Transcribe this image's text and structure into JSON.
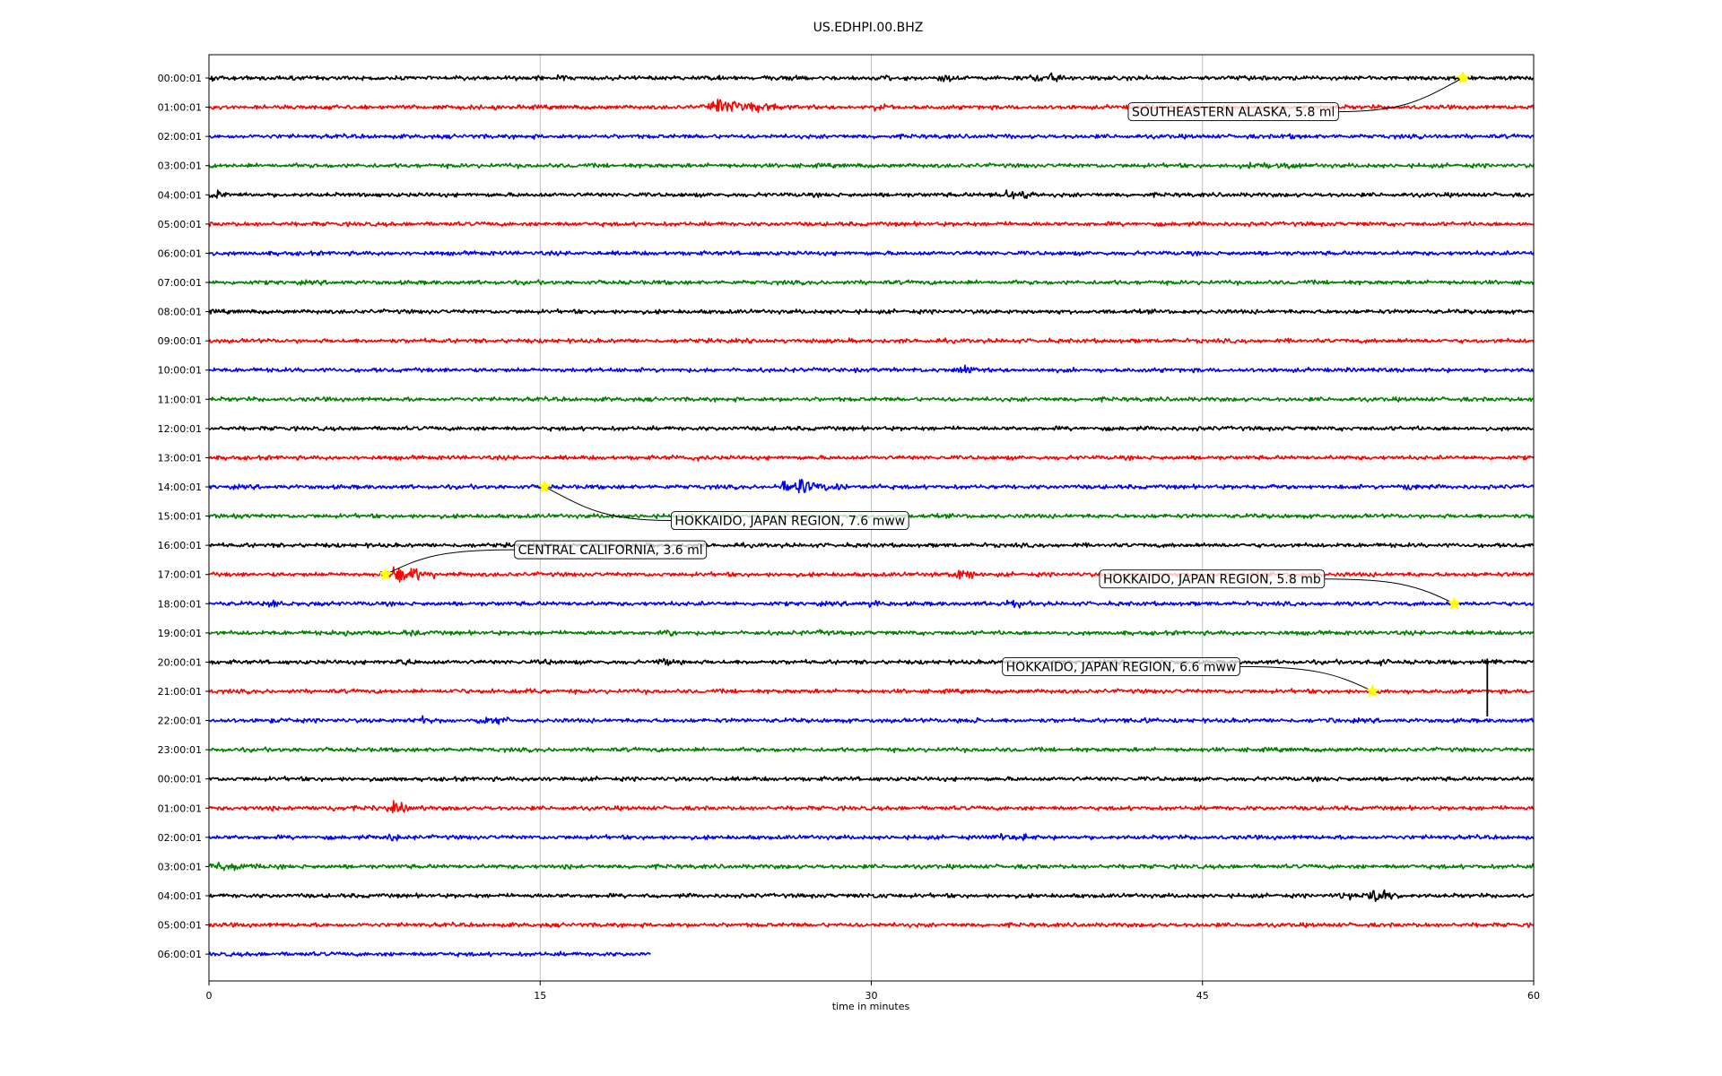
{
  "chart_data": {
    "type": "line",
    "title": "US.EDHPI.00.BHZ",
    "xlabel": "time in minutes",
    "xlim": [
      0,
      60
    ],
    "x_ticks": [
      0,
      15,
      30,
      45,
      60
    ],
    "grid": "vertical",
    "trace_colors": [
      "#000000",
      "#ff0000",
      "#0000ff",
      "#008000"
    ],
    "marker_color": "#ffff00",
    "rows": [
      {
        "label": "00:00:01",
        "color": "#000000",
        "activity": [
          [
            0.3,
            2.0
          ],
          [
            16.0,
            1.5
          ],
          [
            23.0,
            1.6
          ],
          [
            26.5,
            1.7
          ],
          [
            30.5,
            1.8
          ],
          [
            33.5,
            2.0
          ],
          [
            37.5,
            2.2
          ],
          [
            38.2,
            2.6
          ]
        ]
      },
      {
        "label": "01:00:01",
        "color": "#ff0000",
        "activity": [
          [
            23.2,
            5.0
          ],
          [
            23.8,
            4.0
          ],
          [
            24.5,
            3.5
          ],
          [
            25.2,
            2.8
          ],
          [
            30.3,
            2.2
          ],
          [
            30.8,
            1.6
          ]
        ]
      },
      {
        "label": "02:00:01",
        "color": "#0000ff",
        "activity": [
          [
            36.2,
            1.5
          ],
          [
            49.2,
            1.6
          ],
          [
            55.8,
            1.3
          ]
        ]
      },
      {
        "label": "03:00:01",
        "color": "#008000",
        "activity": [
          [
            46.5,
            1.3
          ],
          [
            47.5,
            1.9
          ],
          [
            48.8,
            2.2
          ],
          [
            49.0,
            1.6
          ]
        ]
      },
      {
        "label": "04:00:01",
        "color": "#000000",
        "activity": [
          [
            0.3,
            3.0
          ],
          [
            0.9,
            1.6
          ],
          [
            6.9,
            1.3
          ],
          [
            36.3,
            2.8
          ],
          [
            36.8,
            3.2
          ],
          [
            37.1,
            2.4
          ]
        ]
      },
      {
        "label": "05:00:01",
        "color": "#ff0000",
        "activity": []
      },
      {
        "label": "06:00:01",
        "color": "#0000ff",
        "activity": []
      },
      {
        "label": "07:00:01",
        "color": "#008000",
        "activity": []
      },
      {
        "label": "08:00:01",
        "color": "#000000",
        "activity": []
      },
      {
        "label": "09:00:01",
        "color": "#ff0000",
        "activity": []
      },
      {
        "label": "10:00:01",
        "color": "#0000ff",
        "activity": [
          [
            34.3,
            2.5
          ]
        ]
      },
      {
        "label": "11:00:01",
        "color": "#008000",
        "activity": []
      },
      {
        "label": "12:00:01",
        "color": "#000000",
        "activity": []
      },
      {
        "label": "13:00:01",
        "color": "#ff0000",
        "activity": [
          [
            22.0,
            2.2
          ]
        ]
      },
      {
        "label": "14:00:01",
        "color": "#0000ff",
        "activity": [
          [
            26.7,
            5.5
          ],
          [
            27.5,
            3.2
          ],
          [
            28.5,
            2.2
          ],
          [
            30.0,
            1.6
          ],
          [
            36.0,
            1.3
          ],
          [
            48.5,
            1.8
          ],
          [
            51.0,
            1.6
          ],
          [
            54.5,
            1.8
          ]
        ]
      },
      {
        "label": "15:00:01",
        "color": "#008000",
        "activity": [
          [
            1.5,
            1.3
          ]
        ]
      },
      {
        "label": "16:00:01",
        "color": "#000000",
        "activity": []
      },
      {
        "label": "17:00:01",
        "color": "#ff0000",
        "activity": [
          [
            8.6,
            5.0
          ],
          [
            9.2,
            3.8
          ],
          [
            9.9,
            2.5
          ],
          [
            11.0,
            1.6
          ],
          [
            34.1,
            3.8
          ],
          [
            34.5,
            2.2
          ]
        ]
      },
      {
        "label": "18:00:01",
        "color": "#0000ff",
        "activity": [
          [
            3.0,
            2.4
          ],
          [
            4.6,
            1.5
          ],
          [
            30.1,
            2.0
          ],
          [
            36.4,
            2.6
          ],
          [
            52.0,
            1.3
          ]
        ]
      },
      {
        "label": "19:00:01",
        "color": "#008000",
        "activity": [
          [
            6.3,
            1.8
          ],
          [
            9.2,
            2.0
          ],
          [
            20.9,
            1.7
          ],
          [
            27.8,
            1.6
          ]
        ]
      },
      {
        "label": "20:00:01",
        "color": "#000000",
        "activity": [
          [
            8.8,
            2.3
          ],
          [
            15.2,
            1.8
          ],
          [
            20.8,
            2.6
          ],
          [
            37.0,
            1.5
          ],
          [
            53.0,
            1.8
          ],
          [
            57.9,
            2.0
          ]
        ]
      },
      {
        "label": "21:00:01",
        "color": "#ff0000",
        "activity": [
          [
            11.3,
            1.5
          ],
          [
            13.1,
            1.4
          ],
          [
            14.7,
            1.7
          ],
          [
            53.0,
            1.6
          ]
        ]
      },
      {
        "label": "22:00:01",
        "color": "#0000ff",
        "activity": [
          [
            3.0,
            1.4
          ],
          [
            9.6,
            2.4
          ],
          [
            12.4,
            2.6
          ],
          [
            13.2,
            2.2
          ],
          [
            34.6,
            1.8
          ],
          [
            42.5,
            2.0
          ],
          [
            51.0,
            1.4
          ]
        ]
      },
      {
        "label": "23:00:01",
        "color": "#008000",
        "activity": []
      },
      {
        "label": "00:00:01",
        "color": "#000000",
        "activity": [
          [
            8.5,
            1.6
          ],
          [
            15.7,
            1.3
          ],
          [
            22.8,
            1.4
          ]
        ]
      },
      {
        "label": "01:00:01",
        "color": "#ff0000",
        "activity": [
          [
            2.8,
            1.6
          ],
          [
            5.7,
            1.4
          ],
          [
            8.5,
            3.2
          ],
          [
            9.5,
            1.4
          ]
        ]
      },
      {
        "label": "02:00:01",
        "color": "#0000ff",
        "activity": [
          [
            8.5,
            2.8
          ],
          [
            35.9,
            2.2
          ],
          [
            37.0,
            2.0
          ]
        ]
      },
      {
        "label": "03:00:01",
        "color": "#008000",
        "activity": [
          [
            0.6,
            2.6
          ],
          [
            1.3,
            2.0
          ],
          [
            2.3,
            1.5
          ],
          [
            16.3,
            1.6
          ]
        ]
      },
      {
        "label": "04:00:01",
        "color": "#000000",
        "activity": [
          [
            20.0,
            1.3
          ],
          [
            30.5,
            1.8
          ],
          [
            51.5,
            2.0
          ],
          [
            52.9,
            4.0
          ],
          [
            53.2,
            2.6
          ]
        ]
      },
      {
        "label": "05:00:01",
        "color": "#ff0000",
        "activity": []
      },
      {
        "label": "06:00:01",
        "color": "#0000ff",
        "activity": [],
        "x_end": 20.0
      }
    ],
    "spikes": [
      {
        "row": 20,
        "x": 57.9,
        "to_row": 21,
        "color": "#000000"
      }
    ],
    "annotations": [
      {
        "text": "SOUTHEASTERN ALASKA, 5.8 ml",
        "event_row": 0,
        "event_x": 56.8,
        "label_row": 1,
        "label_x": 41.8
      },
      {
        "text": "HOKKAIDO, JAPAN REGION, 7.6 mww",
        "event_row": 14,
        "event_x": 15.2,
        "label_row": 15,
        "label_x": 21.1
      },
      {
        "text": "CENTRAL CALIFORNIA, 3.6 ml",
        "event_row": 17,
        "event_x": 8.0,
        "label_row": 16,
        "label_x": 14.0
      },
      {
        "text": "HOKKAIDO, JAPAN REGION, 5.8 mb",
        "event_row": 18,
        "event_x": 56.4,
        "label_row": 17,
        "label_x": 40.5
      },
      {
        "text": "HOKKAIDO, JAPAN REGION, 6.6 mww",
        "event_row": 21,
        "event_x": 52.7,
        "label_row": 20,
        "label_x": 36.1
      }
    ]
  }
}
